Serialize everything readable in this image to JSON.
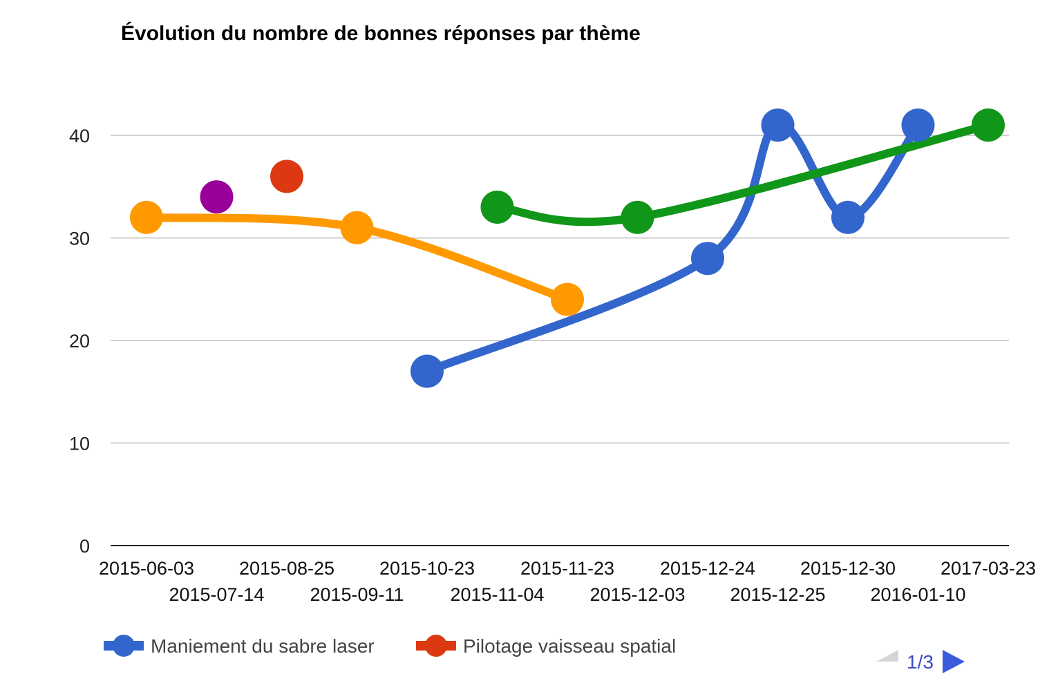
{
  "chart_data": {
    "type": "line",
    "title": "Évolution du nombre de bonnes réponses par thème",
    "xlabel": "",
    "ylabel": "",
    "ylim": [
      0,
      45
    ],
    "y_ticks": [
      0,
      10,
      20,
      30,
      40
    ],
    "grid": true,
    "legend_position": "bottom",
    "categories": [
      "2015-06-03",
      "2015-07-14",
      "2015-08-25",
      "2015-09-11",
      "2015-10-23",
      "2015-11-04",
      "2015-11-23",
      "2015-12-03",
      "2015-12-24",
      "2015-12-25",
      "2015-12-30",
      "2016-01-10",
      "2017-03-23"
    ],
    "series": [
      {
        "name": "Maniement du sabre laser",
        "color": "#3366cc",
        "values": [
          null,
          null,
          null,
          null,
          17,
          null,
          null,
          null,
          28,
          41,
          32,
          41,
          null
        ]
      },
      {
        "name": "Pilotage vaisseau spatial",
        "color": "#dc3912",
        "values": [
          null,
          null,
          36,
          null,
          null,
          null,
          null,
          null,
          null,
          null,
          null,
          null,
          null
        ]
      },
      {
        "name": "",
        "color": "#ff9900",
        "values": [
          32,
          null,
          null,
          31,
          null,
          null,
          24,
          null,
          null,
          null,
          null,
          null,
          null
        ]
      },
      {
        "name": "",
        "color": "#109618",
        "values": [
          null,
          null,
          null,
          null,
          null,
          33,
          null,
          32,
          null,
          null,
          null,
          null,
          41
        ]
      },
      {
        "name": "",
        "color": "#990099",
        "values": [
          null,
          34,
          null,
          null,
          null,
          null,
          null,
          null,
          null,
          null,
          null,
          null,
          null
        ]
      }
    ]
  },
  "pager": {
    "label": "1/3"
  },
  "legend_visible_series": [
    0,
    1
  ]
}
